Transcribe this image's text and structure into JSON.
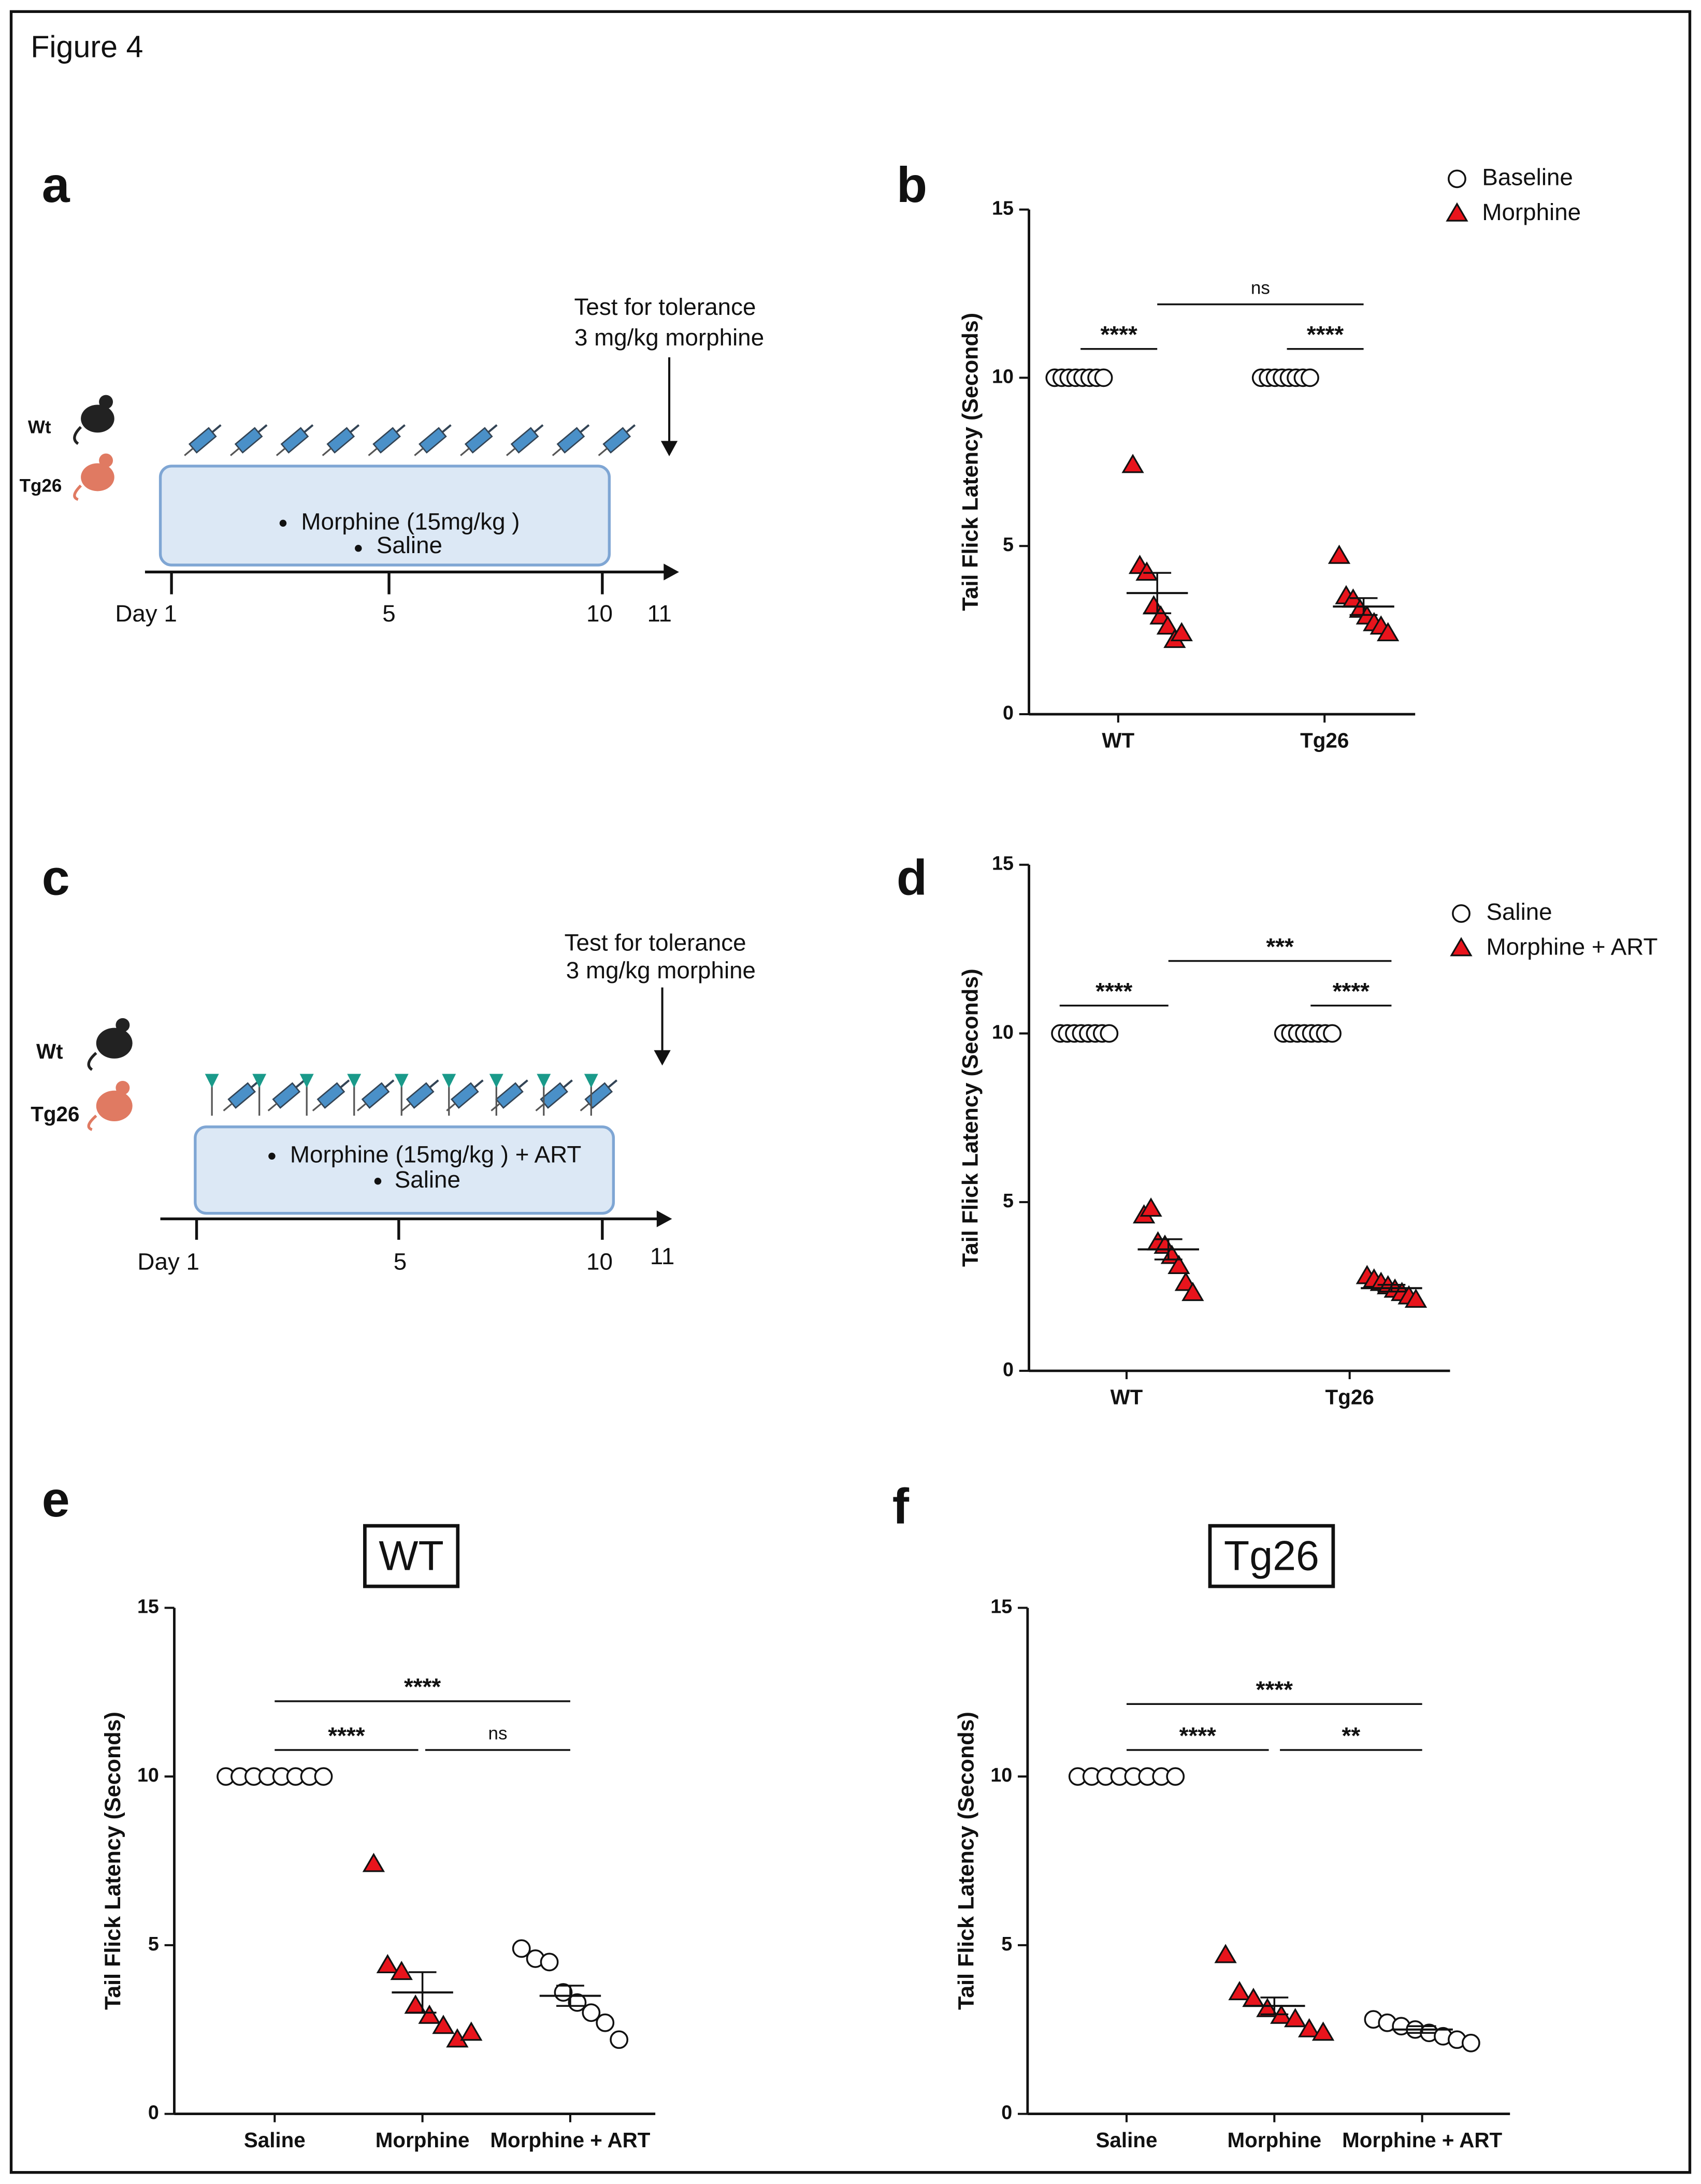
{
  "figure_label": "Figure 4",
  "diagrams": [
    {
      "panel": "a",
      "test_label": [
        "Test for tolerance",
        "3 mg/kg morphine"
      ],
      "animals": [
        "Wt",
        "Tg26"
      ],
      "treatments": [
        "Morphine (15mg/kg )",
        "Saline"
      ],
      "days": [
        "Day 1",
        "5",
        "10",
        "11"
      ]
    },
    {
      "panel": "c",
      "test_label": [
        "Test for tolerance",
        "3 mg/kg morphine"
      ],
      "animals": [
        "Wt",
        "Tg26"
      ],
      "treatments": [
        "Morphine (15mg/kg ) + ART",
        "Saline"
      ],
      "days": [
        "Day 1",
        "5",
        "10",
        "11"
      ]
    }
  ],
  "chart_data": [
    {
      "panel": "b",
      "type": "scatter",
      "ylabel": "Tail Flick Latency (Seconds)",
      "categories": [
        "WT",
        "Tg26"
      ],
      "ylim": [
        0,
        15
      ],
      "yticks": [
        0,
        5,
        10,
        15
      ],
      "legend": "top-right",
      "series": [
        {
          "name": "Baseline",
          "marker": "circle",
          "color": "#ffffff",
          "groups": [
            {
              "values": [
                10,
                10,
                10,
                10,
                10,
                10,
                10,
                10
              ]
            },
            {
              "values": [
                10,
                10,
                10,
                10,
                10,
                10,
                10,
                10
              ]
            }
          ]
        },
        {
          "name": "Morphine",
          "marker": "triangle",
          "color": "#e8141c",
          "groups": [
            {
              "values": [
                7.4,
                4.4,
                4.2,
                3.2,
                2.9,
                2.6,
                2.2,
                2.4
              ],
              "mean": 3.6,
              "sem": 0.6
            },
            {
              "values": [
                4.7,
                3.5,
                3.4,
                3.1,
                2.9,
                2.7,
                2.6,
                2.4
              ],
              "mean": 3.2,
              "sem": 0.25
            }
          ]
        }
      ],
      "comparisons": [
        "****",
        "****",
        "ns"
      ]
    },
    {
      "panel": "d",
      "type": "scatter",
      "ylabel": "Tail Flick Latency (Seconds)",
      "categories": [
        "WT",
        "Tg26"
      ],
      "ylim": [
        0,
        15
      ],
      "yticks": [
        0,
        5,
        10,
        15
      ],
      "legend": "top-right",
      "series": [
        {
          "name": "Saline",
          "marker": "circle",
          "color": "#ffffff",
          "groups": [
            {
              "values": [
                10,
                10,
                10,
                10,
                10,
                10,
                10,
                10
              ]
            },
            {
              "values": [
                10,
                10,
                10,
                10,
                10,
                10,
                10,
                10
              ]
            }
          ]
        },
        {
          "name": "Morphine + ART",
          "marker": "triangle",
          "color": "#e8141c",
          "groups": [
            {
              "values": [
                4.6,
                4.8,
                3.8,
                3.7,
                3.4,
                3.1,
                2.6,
                2.3
              ],
              "mean": 3.6,
              "sem": 0.3
            },
            {
              "values": [
                2.8,
                2.7,
                2.6,
                2.5,
                2.4,
                2.3,
                2.2,
                2.1
              ],
              "mean": 2.45,
              "sem": 0.1
            }
          ]
        }
      ],
      "comparisons": [
        "****",
        "****",
        "***"
      ]
    },
    {
      "panel": "e",
      "type": "scatter",
      "title": "WT",
      "ylabel": "Tail Flick Latency (Seconds)",
      "categories": [
        "Saline",
        "Morphine",
        "Morphine + ART"
      ],
      "ylim": [
        0,
        15
      ],
      "yticks": [
        0,
        5,
        10,
        15
      ],
      "groups": [
        {
          "marker": "circle",
          "color": "#ffffff",
          "values": [
            10,
            10,
            10,
            10,
            10,
            10,
            10,
            10
          ]
        },
        {
          "marker": "triangle",
          "color": "#e8141c",
          "values": [
            7.4,
            4.4,
            4.2,
            3.2,
            2.9,
            2.6,
            2.2,
            2.4
          ],
          "mean": 3.6,
          "sem": 0.6
        },
        {
          "marker": "circle",
          "color": "#ffffff",
          "values": [
            4.9,
            4.6,
            4.5,
            3.6,
            3.3,
            3.0,
            2.7,
            2.2
          ],
          "mean": 3.5,
          "sem": 0.3
        }
      ],
      "comparisons": [
        "****",
        "****",
        "ns"
      ]
    },
    {
      "panel": "f",
      "type": "scatter",
      "title": "Tg26",
      "ylabel": "Tail Flick Latency (Seconds)",
      "categories": [
        "Saline",
        "Morphine",
        "Morphine + ART"
      ],
      "ylim": [
        0,
        15
      ],
      "yticks": [
        0,
        5,
        10,
        15
      ],
      "groups": [
        {
          "marker": "circle",
          "color": "#ffffff",
          "values": [
            10,
            10,
            10,
            10,
            10,
            10,
            10,
            10
          ]
        },
        {
          "marker": "triangle",
          "color": "#e8141c",
          "values": [
            4.7,
            3.6,
            3.4,
            3.1,
            2.9,
            2.8,
            2.5,
            2.4
          ],
          "mean": 3.2,
          "sem": 0.25
        },
        {
          "marker": "circle",
          "color": "#ffffff",
          "values": [
            2.8,
            2.7,
            2.6,
            2.5,
            2.4,
            2.3,
            2.2,
            2.1
          ],
          "mean": 2.5,
          "sem": 0.1
        }
      ],
      "comparisons": [
        "****",
        "****",
        "**"
      ]
    }
  ]
}
